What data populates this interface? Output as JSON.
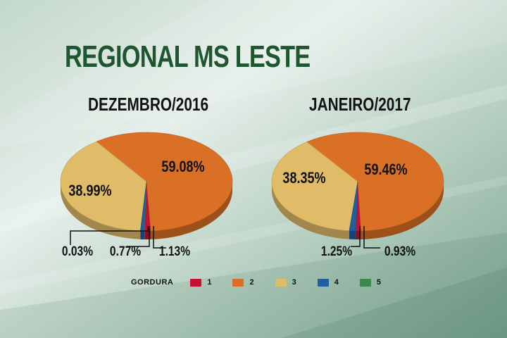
{
  "page": {
    "title": "REGIONAL MS LESTE"
  },
  "colors": {
    "1": "#c8102e",
    "2": "#d97026",
    "3": "#e0bb68",
    "4": "#1f5f9e",
    "5": "#3a8a4f"
  },
  "legend": {
    "title": "GORDURA",
    "items": [
      {
        "label": "1",
        "color": "#c8102e"
      },
      {
        "label": "2",
        "color": "#d97026"
      },
      {
        "label": "3",
        "color": "#e0bb68"
      },
      {
        "label": "4",
        "color": "#1f5f9e"
      },
      {
        "label": "5",
        "color": "#3a8a4f"
      }
    ]
  },
  "chart_data": [
    {
      "type": "pie",
      "title": "DEZEMBRO/2016",
      "slices": [
        {
          "category": "1",
          "value": 1.13,
          "label": "1.13%"
        },
        {
          "category": "2",
          "value": 59.08,
          "label": "59.08%"
        },
        {
          "category": "3",
          "value": 38.99,
          "label": "38.99%"
        },
        {
          "category": "4",
          "value": 0.77,
          "label": "0.77%"
        },
        {
          "category": "5",
          "value": 0.03,
          "label": "0.03%"
        }
      ]
    },
    {
      "type": "pie",
      "title": "JANEIRO/2017",
      "slices": [
        {
          "category": "1",
          "value": 0.93,
          "label": "0.93%"
        },
        {
          "category": "2",
          "value": 59.46,
          "label": "59.46%"
        },
        {
          "category": "3",
          "value": 38.35,
          "label": "38.35%"
        },
        {
          "category": "4",
          "value": 1.25,
          "label": "1.25%"
        }
      ]
    }
  ]
}
